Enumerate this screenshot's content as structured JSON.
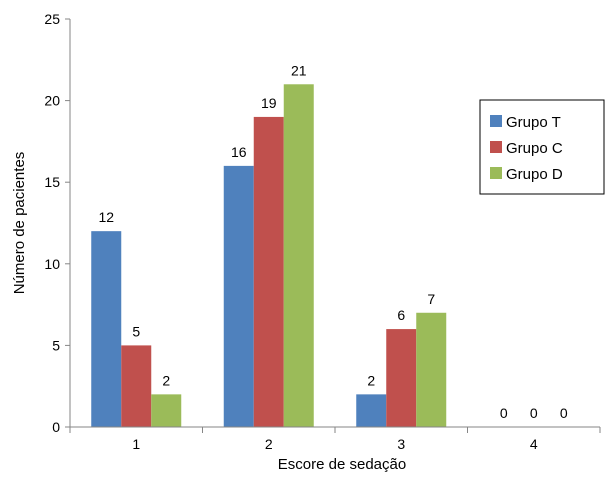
{
  "chart_data": {
    "type": "bar",
    "title": "",
    "xlabel": "Escore de sedação",
    "ylabel": "Número de pacientes",
    "categories": [
      "1",
      "2",
      "3",
      "4"
    ],
    "ylim": [
      0,
      25
    ],
    "yticks": [
      "0",
      "5",
      "10",
      "15",
      "20",
      "25"
    ],
    "grid": false,
    "legend_position": "right",
    "series": [
      {
        "name": "Grupo T",
        "color": "#4f81bd",
        "values": [
          12,
          16,
          2,
          0
        ]
      },
      {
        "name": "Grupo C",
        "color": "#c0504d",
        "values": [
          5,
          19,
          6,
          0
        ]
      },
      {
        "name": "Grupo D",
        "color": "#9bbb59",
        "values": [
          2,
          21,
          7,
          0
        ]
      }
    ]
  }
}
